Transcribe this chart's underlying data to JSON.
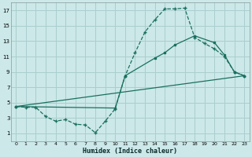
{
  "xlabel": "Humidex (Indice chaleur)",
  "bg_color": "#cce8e8",
  "grid_color": "#aacece",
  "line_color": "#1a7060",
  "xlim": [
    -0.5,
    23.5
  ],
  "ylim": [
    0,
    18
  ],
  "xticks": [
    0,
    1,
    2,
    3,
    4,
    5,
    6,
    7,
    8,
    9,
    10,
    11,
    12,
    13,
    14,
    15,
    16,
    17,
    18,
    19,
    20,
    21,
    22,
    23
  ],
  "yticks": [
    1,
    3,
    5,
    7,
    9,
    11,
    13,
    15,
    17
  ],
  "line1_x": [
    0,
    1,
    2,
    3,
    4,
    5,
    6,
    7,
    8,
    9,
    10,
    11,
    12,
    13,
    14,
    15,
    16,
    17,
    18,
    19,
    20,
    21,
    22,
    23
  ],
  "line1_y": [
    4.5,
    4.4,
    4.4,
    3.2,
    2.6,
    2.8,
    2.2,
    2.1,
    1.1,
    2.6,
    4.2,
    8.5,
    11.5,
    14.2,
    15.8,
    17.2,
    17.2,
    17.3,
    13.5,
    12.7,
    12.0,
    11.0,
    9.0,
    8.5
  ],
  "line2_x": [
    0,
    10,
    11,
    14,
    15,
    16,
    18,
    20,
    21,
    22,
    23
  ],
  "line2_y": [
    4.5,
    4.3,
    8.5,
    10.8,
    11.5,
    12.5,
    13.7,
    12.8,
    11.2,
    9.0,
    8.5
  ],
  "line3_x": [
    0,
    23
  ],
  "line3_y": [
    4.5,
    8.5
  ]
}
